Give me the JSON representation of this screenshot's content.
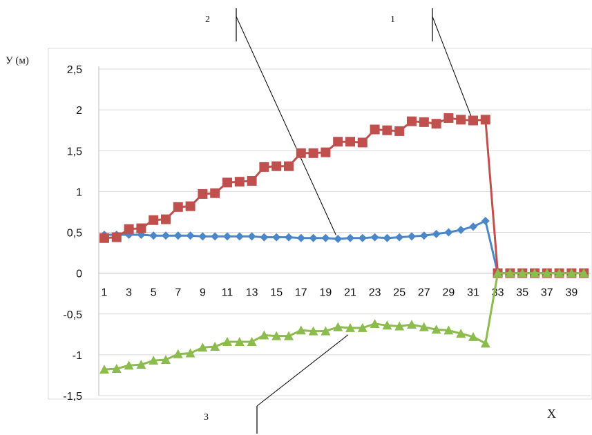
{
  "chart_data": {
    "type": "line",
    "title": "",
    "ylabel": "У (м)",
    "xlabel": "X",
    "ylim": [
      -1.5,
      2.5
    ],
    "yticks": [
      2.5,
      2,
      1.5,
      1,
      0.5,
      0,
      -0.5,
      -1,
      -1.5
    ],
    "ytick_labels": [
      "2,5",
      "2",
      "1,5",
      "1",
      "0,5",
      "0",
      "-0,5",
      "-1",
      "-1,5"
    ],
    "xtick_labels": [
      "1",
      "3",
      "5",
      "7",
      "9",
      "11",
      "13",
      "15",
      "17",
      "19",
      "21",
      "23",
      "25",
      "27",
      "29",
      "31",
      "33",
      "35",
      "37",
      "39"
    ],
    "grid": true,
    "x": [
      1,
      2,
      3,
      4,
      5,
      6,
      7,
      8,
      9,
      10,
      11,
      12,
      13,
      14,
      15,
      16,
      17,
      18,
      19,
      20,
      21,
      22,
      23,
      24,
      25,
      26,
      27,
      28,
      29,
      30,
      31,
      32,
      33,
      34,
      35,
      36,
      37,
      38,
      39,
      40
    ],
    "series": [
      {
        "name": "",
        "color": "#4a86c8",
        "marker": "diamond",
        "values": [
          0.47,
          0.47,
          0.47,
          0.47,
          0.46,
          0.46,
          0.46,
          0.46,
          0.45,
          0.45,
          0.45,
          0.45,
          0.45,
          0.44,
          0.44,
          0.44,
          0.43,
          0.43,
          0.43,
          0.42,
          0.43,
          0.43,
          0.44,
          0.43,
          0.44,
          0.45,
          0.46,
          0.48,
          0.5,
          0.53,
          0.57,
          0.64,
          0,
          0,
          0,
          0,
          0,
          0,
          0,
          0
        ]
      },
      {
        "name": "",
        "color": "#c0504d",
        "marker": "square",
        "values": [
          0.43,
          0.44,
          0.54,
          0.55,
          0.65,
          0.66,
          0.81,
          0.82,
          0.97,
          0.98,
          1.11,
          1.12,
          1.13,
          1.3,
          1.31,
          1.31,
          1.47,
          1.47,
          1.48,
          1.61,
          1.61,
          1.6,
          1.76,
          1.75,
          1.74,
          1.86,
          1.85,
          1.83,
          1.9,
          1.88,
          1.87,
          1.88,
          0,
          0,
          0,
          0,
          0,
          0,
          0,
          0
        ]
      },
      {
        "name": "",
        "color": "#8cbb4e",
        "marker": "triangle",
        "values": [
          -1.18,
          -1.17,
          -1.13,
          -1.12,
          -1.07,
          -1.06,
          -0.99,
          -0.98,
          -0.91,
          -0.9,
          -0.84,
          -0.84,
          -0.84,
          -0.76,
          -0.77,
          -0.77,
          -0.7,
          -0.71,
          -0.71,
          -0.66,
          -0.67,
          -0.67,
          -0.62,
          -0.64,
          -0.65,
          -0.63,
          -0.66,
          -0.69,
          -0.7,
          -0.74,
          -0.78,
          -0.86,
          0,
          0,
          0,
          0,
          0,
          0,
          0,
          0
        ]
      }
    ],
    "annotations": [
      {
        "label": "1",
        "series": 1
      },
      {
        "label": "2",
        "series": 0
      },
      {
        "label": "3",
        "series": 2
      }
    ]
  }
}
